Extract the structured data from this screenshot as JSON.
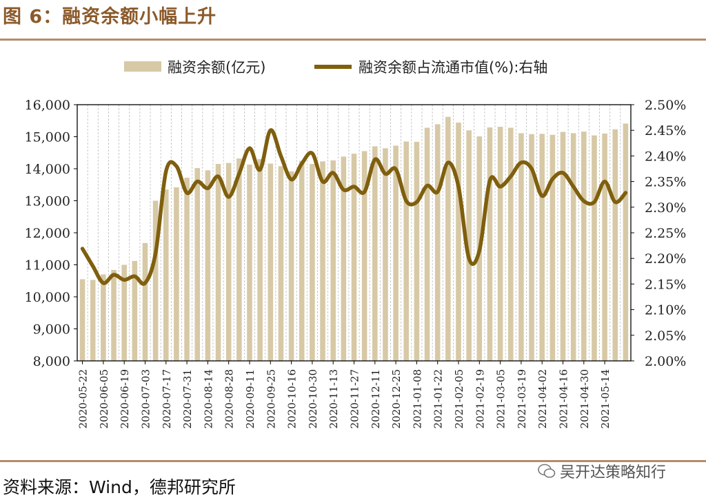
{
  "header": {
    "title": "图 6：融资余额小幅上升"
  },
  "footer": {
    "source": "资料来源：Wind，德邦研究所",
    "watermark": "吴开达策略知行"
  },
  "colors": {
    "bar": "#D7C9A6",
    "line": "#7F5F0E",
    "rule": "#B38C6B",
    "grid": "#BBBBBB"
  },
  "chart_data": {
    "type": "bar+line",
    "title": "融资余额小幅上升",
    "legend": [
      "融资余额(亿元)",
      "融资余额占流通市值(%):右轴"
    ],
    "legend_position": "top",
    "left_axis": {
      "min": 8000,
      "max": 16000,
      "ticks": [
        "8,000",
        "9,000",
        "10,000",
        "11,000",
        "12,000",
        "13,000",
        "14,000",
        "15,000",
        "16,000"
      ]
    },
    "right_axis": {
      "min": 2.0,
      "max": 2.5,
      "ticks": [
        "2.00%",
        "2.05%",
        "2.10%",
        "2.15%",
        "2.20%",
        "2.25%",
        "2.30%",
        "2.35%",
        "2.40%",
        "2.45%",
        "2.50%"
      ]
    },
    "x_tick_labels": [
      "2020-05-22",
      "2020-06-05",
      "2020-06-19",
      "2020-07-03",
      "2020-07-17",
      "2020-07-31",
      "2020-08-14",
      "2020-08-28",
      "2020-09-11",
      "2020-09-25",
      "2020-10-16",
      "2020-10-30",
      "2020-11-13",
      "2020-11-27",
      "2020-12-11",
      "2020-12-25",
      "2021-01-08",
      "2021-01-22",
      "2021-02-05",
      "2021-02-19",
      "2021-03-05",
      "2021-03-19",
      "2021-04-02",
      "2021-04-16",
      "2021-04-30",
      "2021-05-14"
    ],
    "series": [
      {
        "name": "融资余额(亿元)",
        "type": "bar",
        "axis": "left",
        "values": [
          10550,
          10530,
          10700,
          10840,
          11000,
          11120,
          11680,
          13000,
          13350,
          13420,
          13720,
          14020,
          13950,
          14150,
          14180,
          14320,
          14130,
          14300,
          14160,
          14080,
          13920,
          14250,
          14150,
          14230,
          14260,
          14380,
          14470,
          14550,
          14700,
          14640,
          14720,
          14850,
          14840,
          15280,
          15390,
          15620,
          15440,
          15200,
          15010,
          15290,
          15310,
          15280,
          15110,
          15080,
          15090,
          15060,
          15150,
          15110,
          15160,
          15040,
          15100,
          15230,
          15410
        ]
      },
      {
        "name": "融资余额占流通市值(%):右轴",
        "type": "line",
        "axis": "right",
        "values": [
          2.219,
          2.185,
          2.152,
          2.168,
          2.158,
          2.165,
          2.152,
          2.21,
          2.37,
          2.38,
          2.328,
          2.35,
          2.337,
          2.36,
          2.32,
          2.365,
          2.415,
          2.373,
          2.45,
          2.4,
          2.354,
          2.385,
          2.405,
          2.35,
          2.367,
          2.334,
          2.34,
          2.33,
          2.393,
          2.365,
          2.374,
          2.312,
          2.31,
          2.342,
          2.33,
          2.387,
          2.34,
          2.2,
          2.215,
          2.352,
          2.34,
          2.36,
          2.387,
          2.375,
          2.322,
          2.355,
          2.367,
          2.34,
          2.312,
          2.31,
          2.35,
          2.31,
          2.328
        ]
      }
    ]
  }
}
